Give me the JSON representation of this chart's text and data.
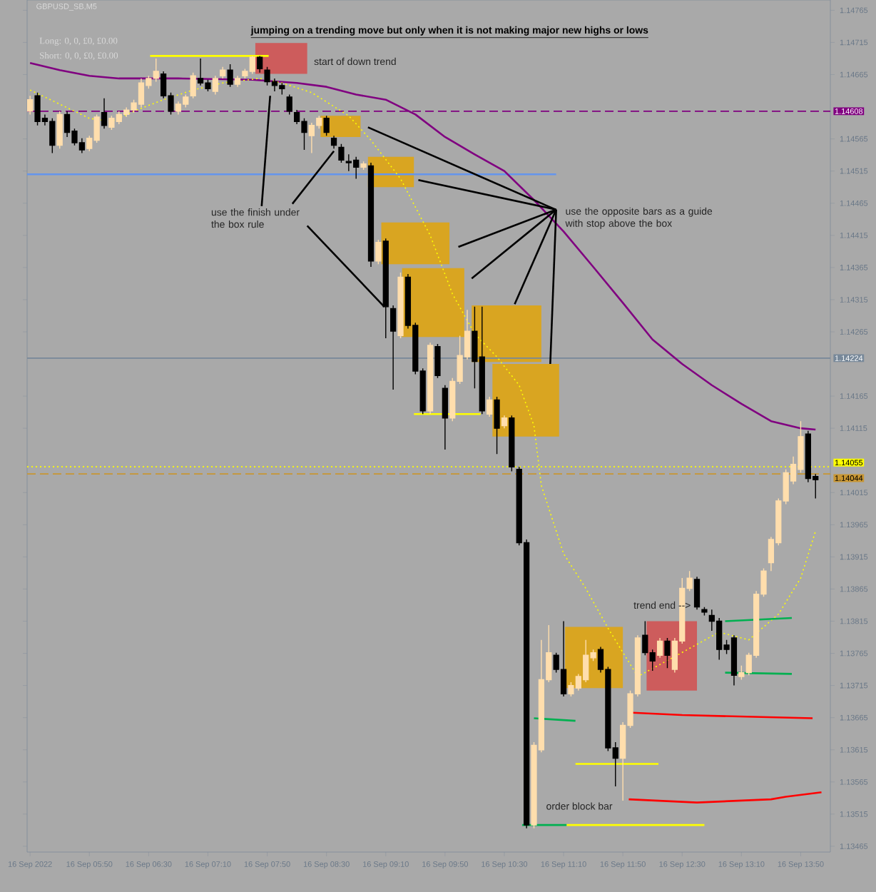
{
  "chart_data": {
    "type": "candlestick",
    "title": "jumping on a trending move but only when it is not making major new highs or lows",
    "subtitle": "GBPUSD_SB,M5",
    "colors": [
      "#ffdead",
      "#000000",
      "#000000",
      "#000000",
      "#ffdead",
      "#000000",
      "#000000",
      "#000000",
      "#ffdead",
      "#ffdead",
      "#000000",
      "#ffdead",
      "#ffdead",
      "#ffdead",
      "#ffdead",
      "#ffdead",
      "#ffdead",
      "#ffdead",
      "#000000",
      "#000000",
      "#ffdead",
      "#ffdead",
      "#ffdead",
      "#000000",
      "#000000",
      "#ffdead",
      "#ffdead",
      "#000000",
      "#ffdead",
      "#ffdead",
      "#ffdead",
      "#000000",
      "#000000",
      "#000000",
      "#000000",
      "#000000",
      "#000000",
      "#000000",
      "#ffdead",
      "#ffdead",
      "#000000",
      "#000000",
      "#000000",
      "#000000",
      "#000000",
      "#ffdead",
      "#000000",
      "#ffdead",
      "#000000",
      "#000000",
      "#ffdead",
      "#000000",
      "#000000",
      "#000000",
      "#ffdead",
      "#000000",
      "#000000",
      "#ffdead",
      "#ffdead",
      "#ffdead",
      "#000000",
      "#000000",
      "#ffdead",
      "#000000",
      "#ffdead",
      "#000000",
      "#000000",
      "#000000",
      "#ffdead",
      "#ffdead",
      "#ffdead",
      "#000000",
      "#000000",
      "#ffdead",
      "#ffdead",
      "#ffdead",
      "#ffdead",
      "#000000",
      "#000000",
      "#000000",
      "#ffdead",
      "#ffdead",
      "#ffdead",
      "#000000",
      "#000000",
      "#ffdead",
      "#000000",
      "#ffdead",
      "#ffdead",
      "#ffdead",
      "#000000",
      "#000000",
      "#000000",
      "#000000",
      "#000000",
      "#000000",
      "#ffdead",
      "#ffdead",
      "#ffdead",
      "#ffdead",
      "#ffdead",
      "#ffdead",
      "#ffdead",
      "#ffdead",
      "#ffdead",
      "#000000",
      "#000000"
    ],
    "x": [
      "2022-09-16T05:10",
      "2022-09-16T05:15",
      "2022-09-16T05:20",
      "2022-09-16T05:25",
      "2022-09-16T05:30",
      "2022-09-16T05:35",
      "2022-09-16T05:40",
      "2022-09-16T05:45",
      "2022-09-16T05:50",
      "2022-09-16T05:55",
      "2022-09-16T06:00",
      "2022-09-16T06:05",
      "2022-09-16T06:10",
      "2022-09-16T06:15",
      "2022-09-16T06:20",
      "2022-09-16T06:25",
      "2022-09-16T06:30",
      "2022-09-16T06:35",
      "2022-09-16T06:40",
      "2022-09-16T06:45",
      "2022-09-16T06:50",
      "2022-09-16T06:55",
      "2022-09-16T07:00",
      "2022-09-16T07:05",
      "2022-09-16T07:10",
      "2022-09-16T07:15",
      "2022-09-16T07:20",
      "2022-09-16T07:25",
      "2022-09-16T07:30",
      "2022-09-16T07:35",
      "2022-09-16T07:40",
      "2022-09-16T07:45",
      "2022-09-16T07:50",
      "2022-09-16T07:55",
      "2022-09-16T08:00",
      "2022-09-16T08:05",
      "2022-09-16T08:10",
      "2022-09-16T08:15",
      "2022-09-16T08:20",
      "2022-09-16T08:25",
      "2022-09-16T08:30",
      "2022-09-16T08:35",
      "2022-09-16T08:40",
      "2022-09-16T08:45",
      "2022-09-16T08:50",
      "2022-09-16T08:55",
      "2022-09-16T09:00",
      "2022-09-16T09:05",
      "2022-09-16T09:10",
      "2022-09-16T09:15",
      "2022-09-16T09:20",
      "2022-09-16T09:25",
      "2022-09-16T09:30",
      "2022-09-16T09:35",
      "2022-09-16T09:40",
      "2022-09-16T09:45",
      "2022-09-16T09:50",
      "2022-09-16T09:55",
      "2022-09-16T10:00",
      "2022-09-16T10:05",
      "2022-09-16T10:10",
      "2022-09-16T10:15",
      "2022-09-16T10:20",
      "2022-09-16T10:25",
      "2022-09-16T10:30",
      "2022-09-16T10:35",
      "2022-09-16T10:40",
      "2022-09-16T10:45",
      "2022-09-16T10:50",
      "2022-09-16T10:55",
      "2022-09-16T11:00",
      "2022-09-16T11:05",
      "2022-09-16T11:10",
      "2022-09-16T11:15",
      "2022-09-16T11:20",
      "2022-09-16T11:25",
      "2022-09-16T11:30",
      "2022-09-16T11:35",
      "2022-09-16T11:40",
      "2022-09-16T11:45",
      "2022-09-16T11:50",
      "2022-09-16T11:55",
      "2022-09-16T12:00",
      "2022-09-16T12:05",
      "2022-09-16T12:10",
      "2022-09-16T12:15",
      "2022-09-16T12:20",
      "2022-09-16T12:25",
      "2022-09-16T12:30",
      "2022-09-16T12:35",
      "2022-09-16T12:40",
      "2022-09-16T12:45",
      "2022-09-16T12:50",
      "2022-09-16T12:55",
      "2022-09-16T13:00",
      "2022-09-16T13:05",
      "2022-09-16T13:10",
      "2022-09-16T13:15",
      "2022-09-16T13:20",
      "2022-09-16T13:25",
      "2022-09-16T13:30",
      "2022-09-16T13:35",
      "2022-09-16T13:40",
      "2022-09-16T13:45",
      "2022-09-16T13:50",
      "2022-09-16T13:55",
      "2022-09-16T14:00"
    ],
    "ohlc": [
      [
        1.14608,
        1.14632,
        1.14603,
        1.14626
      ],
      [
        1.14632,
        1.14637,
        1.14586,
        1.14592
      ],
      [
        1.14597,
        1.14603,
        1.14586,
        1.14592
      ],
      [
        1.14592,
        1.14597,
        1.14543,
        1.14555
      ],
      [
        1.14555,
        1.14608,
        1.1455,
        1.14603
      ],
      [
        1.14603,
        1.14608,
        1.14568,
        1.14575
      ],
      [
        1.14577,
        1.14581,
        1.14555,
        1.14559
      ],
      [
        1.14559,
        1.14566,
        1.14543,
        1.14548
      ],
      [
        1.1455,
        1.1457,
        1.14546,
        1.14566
      ],
      [
        1.14563,
        1.14603,
        1.14559,
        1.14599
      ],
      [
        1.14606,
        1.14628,
        1.14581,
        1.14586
      ],
      [
        1.14583,
        1.14601,
        1.14579,
        1.14597
      ],
      [
        1.14592,
        1.14608,
        1.14588,
        1.14603
      ],
      [
        1.14603,
        1.14614,
        1.14599,
        1.1461
      ],
      [
        1.1461,
        1.14626,
        1.14606,
        1.14621
      ],
      [
        1.14619,
        1.14659,
        1.14614,
        1.14652
      ],
      [
        1.14648,
        1.14663,
        1.14643,
        1.14659
      ],
      [
        1.14659,
        1.1469,
        1.14654,
        1.1467
      ],
      [
        1.14666,
        1.1467,
        1.14628,
        1.14632
      ],
      [
        1.14632,
        1.14637,
        1.14603,
        1.14608
      ],
      [
        1.14608,
        1.14623,
        1.14603,
        1.14619
      ],
      [
        1.14619,
        1.14634,
        1.14614,
        1.1463
      ],
      [
        1.14632,
        1.14668,
        1.14628,
        1.14663
      ],
      [
        1.14659,
        1.1469,
        1.14648,
        1.14652
      ],
      [
        1.14652,
        1.14657,
        1.14639,
        1.14643
      ],
      [
        1.14639,
        1.14663,
        1.14634,
        1.14659
      ],
      [
        1.14663,
        1.14677,
        1.14659,
        1.14672
      ],
      [
        1.14672,
        1.14681,
        1.14646,
        1.1465
      ],
      [
        1.1465,
        1.14663,
        1.14646,
        1.14659
      ],
      [
        1.14663,
        1.14674,
        1.14659,
        1.1467
      ],
      [
        1.1467,
        1.14694,
        1.14666,
        1.14692
      ],
      [
        1.14692,
        1.14694,
        1.14668,
        1.14674
      ],
      [
        1.14672,
        1.14677,
        1.14648,
        1.14654
      ],
      [
        1.14654,
        1.14659,
        1.14639,
        1.14648
      ],
      [
        1.14648,
        1.14652,
        1.14634,
        1.14643
      ],
      [
        1.1463,
        1.14634,
        1.14603,
        1.14608
      ],
      [
        1.14606,
        1.1461,
        1.14588,
        1.14592
      ],
      [
        1.14592,
        1.14597,
        1.14548,
        1.14575
      ],
      [
        1.1457,
        1.1459,
        1.14543,
        1.14586
      ],
      [
        1.14586,
        1.14601,
        1.14581,
        1.14597
      ],
      [
        1.14597,
        1.14601,
        1.1457,
        1.14575
      ],
      [
        1.14566,
        1.1457,
        1.1455,
        1.14555
      ],
      [
        1.14552,
        1.14557,
        1.14528,
        1.14532
      ],
      [
        1.1453,
        1.14541,
        1.14515,
        1.14528
      ],
      [
        1.14532,
        1.14537,
        1.14503,
        1.14521
      ],
      [
        1.14521,
        1.1453,
        1.14517,
        1.14526
      ],
      [
        1.14523,
        1.14528,
        1.14366,
        1.14375
      ],
      [
        1.14375,
        1.14408,
        1.1437,
        1.14404
      ],
      [
        1.14406,
        1.1441,
        1.14255,
        1.14304
      ],
      [
        1.14301,
        1.14306,
        1.14175,
        1.14266
      ],
      [
        1.14259,
        1.14357,
        1.14255,
        1.1435
      ],
      [
        1.1435,
        1.14355,
        1.1427,
        1.14275
      ],
      [
        1.14275,
        1.14279,
        1.14199,
        1.14204
      ],
      [
        1.14204,
        1.14208,
        1.14137,
        1.14142
      ],
      [
        1.14142,
        1.14248,
        1.14137,
        1.14244
      ],
      [
        1.14242,
        1.14246,
        1.14193,
        1.14197
      ],
      [
        1.14177,
        1.14182,
        1.14082,
        1.14131
      ],
      [
        1.14131,
        1.14193,
        1.14126,
        1.14188
      ],
      [
        1.14188,
        1.14259,
        1.14184,
        1.14228
      ],
      [
        1.14226,
        1.14299,
        1.14222,
        1.14266
      ],
      [
        1.14266,
        1.14304,
        1.14177,
        1.14219
      ],
      [
        1.14226,
        1.14304,
        1.14137,
        1.14142
      ],
      [
        1.14137,
        1.14164,
        1.14133,
        1.14159
      ],
      [
        1.14159,
        1.14164,
        1.14075,
        1.14115
      ],
      [
        1.14119,
        1.14135,
        1.14115,
        1.14131
      ],
      [
        1.14131,
        1.14135,
        1.14048,
        1.14055
      ],
      [
        1.14051,
        1.14055,
        1.13933,
        1.13937
      ],
      [
        1.13937,
        1.13942,
        1.13493,
        1.13498
      ],
      [
        1.13498,
        1.13627,
        1.13493,
        1.13622
      ],
      [
        1.13615,
        1.13786,
        1.13611,
        1.13724
      ],
      [
        1.13724,
        1.13809,
        1.1372,
        1.13766
      ],
      [
        1.13762,
        1.13766,
        1.13735,
        1.1374
      ],
      [
        1.1374,
        1.13815,
        1.13698,
        1.13702
      ],
      [
        1.13702,
        1.1372,
        1.13698,
        1.13715
      ],
      [
        1.13711,
        1.13733,
        1.13707,
        1.13729
      ],
      [
        1.13724,
        1.13786,
        1.1372,
        1.13762
      ],
      [
        1.13758,
        1.13771,
        1.13753,
        1.13766
      ],
      [
        1.13771,
        1.13775,
        1.13735,
        1.1374
      ],
      [
        1.1374,
        1.13744,
        1.13613,
        1.13618
      ],
      [
        1.13618,
        1.13627,
        1.13558,
        1.13602
      ],
      [
        1.13602,
        1.13658,
        1.13536,
        1.13653
      ],
      [
        1.13653,
        1.13707,
        1.13649,
        1.13702
      ],
      [
        1.13702,
        1.13793,
        1.13698,
        1.13789
      ],
      [
        1.13793,
        1.13815,
        1.13762,
        1.13766
      ],
      [
        1.13766,
        1.13771,
        1.13738,
        1.13753
      ],
      [
        1.13762,
        1.13789,
        1.13758,
        1.13784
      ],
      [
        1.13784,
        1.13789,
        1.13742,
        1.13762
      ],
      [
        1.1374,
        1.13789,
        1.13735,
        1.13784
      ],
      [
        1.13784,
        1.13882,
        1.1378,
        1.13866
      ],
      [
        1.13866,
        1.13893,
        1.13862,
        1.13882
      ],
      [
        1.1388,
        1.13884,
        1.13833,
        1.13837
      ],
      [
        1.13833,
        1.13837,
        1.13824,
        1.13829
      ],
      [
        1.13824,
        1.13833,
        1.138,
        1.13815
      ],
      [
        1.13815,
        1.1382,
        1.13755,
        1.13771
      ],
      [
        1.13778,
        1.13786,
        1.13764,
        1.13771
      ],
      [
        1.13789,
        1.13793,
        1.13715,
        1.13731
      ],
      [
        1.13729,
        1.13746,
        1.13724,
        1.13735
      ],
      [
        1.13735,
        1.13766,
        1.13731,
        1.13762
      ],
      [
        1.13762,
        1.13862,
        1.13758,
        1.13857
      ],
      [
        1.13857,
        1.13897,
        1.13853,
        1.13893
      ],
      [
        1.13906,
        1.13946,
        1.13893,
        1.13942
      ],
      [
        1.13937,
        1.14006,
        1.13933,
        1.14002
      ],
      [
        1.14002,
        1.14051,
        1.13997,
        1.14046
      ],
      [
        1.14033,
        1.14071,
        1.14028,
        1.14059
      ],
      [
        1.14051,
        1.14126,
        1.14046,
        1.14102
      ],
      [
        1.14106,
        1.14111,
        1.14031,
        1.14037
      ],
      [
        1.1404,
        1.14044,
        1.14006,
        1.14035
      ]
    ],
    "series": [
      {
        "type": "area",
        "color": "#cd5c5c",
        "x": [
          "2022-09-16T07:42",
          "2022-09-16T08:17"
        ],
        "values": [
          null,
          null
        ],
        "upper": [
          1.14714,
          1.14714
        ],
        "lower": [
          1.14666,
          1.14666
        ]
      },
      {
        "type": "area",
        "color": "#d9a521",
        "x": [
          "2022-09-16T08:26",
          "2022-09-16T08:53"
        ],
        "values": [
          null,
          null
        ],
        "upper": [
          1.14601,
          1.14601
        ],
        "lower": [
          1.14568,
          1.14568
        ]
      },
      {
        "type": "area",
        "color": "#d9a521",
        "x": [
          "2022-09-16T08:58",
          "2022-09-16T09:29"
        ],
        "values": [
          null,
          null
        ],
        "upper": [
          1.14537,
          1.14537
        ],
        "lower": [
          1.1449,
          1.1449
        ]
      },
      {
        "type": "area",
        "color": "#d9a521",
        "x": [
          "2022-09-16T09:07",
          "2022-09-16T09:53"
        ],
        "values": [
          null,
          null
        ],
        "upper": [
          1.14435,
          1.14435
        ],
        "lower": [
          1.1437,
          1.1437
        ]
      },
      {
        "type": "area",
        "color": "#d9a521",
        "x": [
          "2022-09-16T09:21",
          "2022-09-16T10:03"
        ],
        "values": [
          null,
          null
        ],
        "upper": [
          1.14364,
          1.14364
        ],
        "lower": [
          1.14257,
          1.14257
        ]
      },
      {
        "type": "area",
        "color": "#d9a521",
        "x": [
          "2022-09-16T10:08",
          "2022-09-16T10:55"
        ],
        "values": [
          null,
          null
        ],
        "upper": [
          1.14306,
          1.14306
        ],
        "lower": [
          1.14218,
          1.14218
        ]
      },
      {
        "type": "area",
        "color": "#d9a521",
        "x": [
          "2022-09-16T10:22",
          "2022-09-16T11:07"
        ],
        "values": [
          null,
          null
        ],
        "upper": [
          1.14215,
          1.14215
        ],
        "lower": [
          1.14102,
          1.14102
        ]
      },
      {
        "type": "area",
        "color": "#d9a521",
        "x": [
          "2022-09-16T11:11",
          "2022-09-16T11:50"
        ],
        "values": [
          null,
          null
        ],
        "upper": [
          1.13806,
          1.13806
        ],
        "lower": [
          1.13711,
          1.13711
        ]
      },
      {
        "type": "area",
        "color": "#cd5c5c",
        "x": [
          "2022-09-16T12:06",
          "2022-09-16T12:40"
        ],
        "values": [
          null,
          null
        ],
        "upper": [
          1.13815,
          1.13815
        ],
        "lower": [
          1.13707,
          1.13707
        ]
      },
      {
        "type": "line",
        "color": "#6495ed",
        "x": [
          "2022-09-16T05:08",
          "2022-09-16T11:05"
        ],
        "values": [
          1.1451,
          1.1451
        ]
      },
      {
        "type": "line",
        "color": "#800080",
        "x": [
          "2022-09-16T05:10",
          "2022-09-16T05:30",
          "2022-09-16T05:50",
          "2022-09-16T06:10",
          "2022-09-16T06:50",
          "2022-09-16T07:40",
          "2022-09-16T08:10",
          "2022-09-16T08:30",
          "2022-09-16T08:50",
          "2022-09-16T09:10",
          "2022-09-16T09:30",
          "2022-09-16T09:50",
          "2022-09-16T10:10",
          "2022-09-16T10:30",
          "2022-09-16T10:50",
          "2022-09-16T11:10",
          "2022-09-16T11:30",
          "2022-09-16T11:50",
          "2022-09-16T12:10",
          "2022-09-16T12:30",
          "2022-09-16T12:50",
          "2022-09-16T13:10",
          "2022-09-16T13:30",
          "2022-09-16T13:50",
          "2022-09-16T14:00"
        ],
        "values": [
          1.14683,
          1.14672,
          1.14663,
          1.14659,
          1.14659,
          1.14657,
          1.14652,
          1.14646,
          1.14634,
          1.14626,
          1.14603,
          1.14568,
          1.14541,
          1.14515,
          1.1447,
          1.14421,
          1.14366,
          1.1431,
          1.14253,
          1.14215,
          1.14182,
          1.14153,
          1.14126,
          1.14115,
          1.14113
        ]
      },
      {
        "type": "line",
        "color": "#ffff00",
        "line_style": "dotted",
        "x": [
          "2022-09-16T05:10",
          "2022-09-16T05:50",
          "2022-09-16T06:05",
          "2022-09-16T06:20",
          "2022-09-16T06:40",
          "2022-09-16T07:00",
          "2022-09-16T07:20",
          "2022-09-16T07:45",
          "2022-09-16T08:00",
          "2022-09-16T08:20",
          "2022-09-16T08:45",
          "2022-09-16T09:00",
          "2022-09-16T09:20",
          "2022-09-16T09:40",
          "2022-09-16T09:55",
          "2022-09-16T10:10",
          "2022-09-16T10:25",
          "2022-09-16T10:40",
          "2022-09-16T10:50",
          "2022-09-16T10:55",
          "2022-09-16T11:10",
          "2022-09-16T11:25",
          "2022-09-16T11:40",
          "2022-09-16T12:00",
          "2022-09-16T12:25",
          "2022-09-16T12:55",
          "2022-09-16T13:15",
          "2022-09-16T13:35",
          "2022-09-16T13:50",
          "2022-09-16T14:00"
        ],
        "values": [
          1.14641,
          1.14597,
          1.14592,
          1.14608,
          1.14626,
          1.14641,
          1.14652,
          1.14659,
          1.14652,
          1.14637,
          1.14601,
          1.14563,
          1.14503,
          1.14415,
          1.14324,
          1.14262,
          1.14226,
          1.14182,
          1.14119,
          1.14026,
          1.1392,
          1.13866,
          1.13804,
          1.13729,
          1.1376,
          1.13798,
          1.13786,
          1.13826,
          1.13882,
          1.13955
        ]
      },
      {
        "type": "line",
        "color": "#ffff00",
        "x": [
          "2022-09-16T06:31",
          "2022-09-16T07:51"
        ],
        "values": [
          1.14694,
          1.14694
        ]
      },
      {
        "type": "line",
        "color": "#ffff00",
        "x": [
          "2022-09-16T09:29",
          "2022-09-16T10:14"
        ],
        "values": [
          1.14137,
          1.14137
        ]
      },
      {
        "type": "line",
        "color": "#ffff00",
        "x": [
          "2022-09-16T11:18",
          "2022-09-16T12:14"
        ],
        "values": [
          1.13593,
          1.13593
        ]
      },
      {
        "type": "line",
        "color": "#ffff00",
        "x": [
          "2022-09-16T11:12",
          "2022-09-16T12:45"
        ],
        "values": [
          1.13498,
          1.13498
        ]
      },
      {
        "type": "line",
        "color": "#ff0000",
        "x": [
          "2022-09-16T11:54",
          "2022-09-16T12:30",
          "2022-09-16T13:58"
        ],
        "values": [
          1.13673,
          1.13669,
          1.13664
        ]
      },
      {
        "type": "line",
        "color": "#ff0000",
        "x": [
          "2022-09-16T11:54",
          "2022-09-16T12:40",
          "2022-09-16T13:30",
          "2022-09-16T13:40",
          "2022-09-16T14:04"
        ],
        "values": [
          1.13538,
          1.13533,
          1.13538,
          1.13542,
          1.13549
        ]
      },
      {
        "type": "line",
        "color": "#00b050",
        "x": [
          "2022-09-16T12:59",
          "2022-09-16T13:44"
        ],
        "values": [
          1.13815,
          1.1382
        ]
      },
      {
        "type": "line",
        "color": "#00b050",
        "x": [
          "2022-09-16T12:59",
          "2022-09-16T13:44"
        ],
        "values": [
          1.13735,
          1.13733
        ]
      },
      {
        "type": "line",
        "color": "#00b050",
        "x": [
          "2022-09-16T10:50",
          "2022-09-16T11:18"
        ],
        "values": [
          1.13664,
          1.1366
        ]
      },
      {
        "type": "line",
        "color": "#00b050",
        "x": [
          "2022-09-16T10:42",
          "2022-09-16T11:12"
        ],
        "values": [
          1.13498,
          1.13498
        ]
      },
      {
        "type": "line",
        "color": "#000000",
        "x": [
          "2022-09-16T11:05",
          "2022-09-16T09:32"
        ],
        "values": [
          1.14455,
          1.14501
        ]
      },
      {
        "type": "line",
        "color": "#000000",
        "x": [
          "2022-09-16T11:05",
          "2022-09-16T09:59"
        ],
        "values": [
          1.14455,
          1.14397
        ]
      },
      {
        "type": "line",
        "color": "#000000",
        "x": [
          "2022-09-16T11:05",
          "2022-09-16T10:08"
        ],
        "values": [
          1.14455,
          1.14348
        ]
      },
      {
        "type": "line",
        "color": "#000000",
        "x": [
          "2022-09-16T11:05",
          "2022-09-16T10:37"
        ],
        "values": [
          1.14455,
          1.14308
        ]
      },
      {
        "type": "line",
        "color": "#000000",
        "x": [
          "2022-09-16T11:05",
          "2022-09-16T11:01"
        ],
        "values": [
          1.14455,
          1.14215
        ]
      },
      {
        "type": "line",
        "color": "#000000",
        "x": [
          "2022-09-16T08:07",
          "2022-09-16T08:35"
        ],
        "values": [
          1.14464,
          1.14546
        ]
      },
      {
        "type": "line",
        "color": "#000000",
        "x": [
          "2022-09-16T08:17",
          "2022-09-16T09:09"
        ],
        "values": [
          1.1443,
          1.14304
        ]
      }
    ],
    "ref_lines": [
      {
        "axis": "y",
        "value": 1.14608,
        "label": "1.14608",
        "color": "#800080",
        "line_style": "dashed"
      },
      {
        "axis": "y",
        "value": 1.14224,
        "label": "1.14224",
        "color": "#778899",
        "line_style": "solid"
      },
      {
        "axis": "y",
        "value": 1.14055,
        "label": "1.14055",
        "color": "#ffff00",
        "line_style": "dotted"
      },
      {
        "axis": "y",
        "value": 1.14044,
        "label": "1.14044",
        "color": "#c89632",
        "line_style": "dashed"
      }
    ],
    "annotations": [
      "Long: 0, 0, £0, £0.00",
      "Short: 0, 0, £0, £0.00",
      "start of down trend",
      {
        "text": "use the finish under the box rule",
        "x": "2022-09-16T07:52",
        "y": 1.14632
      },
      {
        "text": "use the opposite bars as a guide with stop above the box",
        "x": "2022-09-16T08:58",
        "y": 1.14583
      },
      {
        "text": "trend end -->",
        "x": "2022-09-16T12:37",
        "y": 1.1384
      },
      "order block bar"
    ],
    "xlim": [
      "2022-09-16T05:08",
      "2022-09-16T14:10"
    ],
    "xticks": [
      {
        "value": "2022-09-16T05:10",
        "label": "16 Sep 2022"
      },
      {
        "value": "2022-09-16T05:50",
        "label": "16 Sep 05:50"
      },
      {
        "value": "2022-09-16T06:30",
        "label": "16 Sep 06:30"
      },
      {
        "value": "2022-09-16T07:10",
        "label": "16 Sep 07:10"
      },
      {
        "value": "2022-09-16T07:50",
        "label": "16 Sep 07:50"
      },
      {
        "value": "2022-09-16T08:30",
        "label": "16 Sep 08:30"
      },
      {
        "value": "2022-09-16T09:10",
        "label": "16 Sep 09:10"
      },
      {
        "value": "2022-09-16T09:50",
        "label": "16 Sep 09:50"
      },
      {
        "value": "2022-09-16T10:30",
        "label": "16 Sep 10:30"
      },
      {
        "value": "2022-09-16T11:10",
        "label": "16 Sep 11:10"
      },
      {
        "value": "2022-09-16T11:50",
        "label": "16 Sep 11:50"
      },
      {
        "value": "2022-09-16T12:30",
        "label": "16 Sep 12:30"
      },
      {
        "value": "2022-09-16T13:10",
        "label": "16 Sep 13:10"
      },
      {
        "value": "2022-09-16T13:50",
        "label": "16 Sep 13:50"
      }
    ],
    "ylim": [
      1.13456,
      1.14781
    ],
    "yticks": [
      1.14765,
      1.14715,
      1.14665,
      1.14565,
      1.14515,
      1.14465,
      1.14415,
      1.14365,
      1.14315,
      1.14265,
      1.14165,
      1.14115,
      1.14015,
      1.13965,
      1.13915,
      1.13865,
      1.13815,
      1.13765,
      1.13715,
      1.13665,
      1.13615,
      1.13565,
      1.13515,
      1.13465
    ]
  }
}
